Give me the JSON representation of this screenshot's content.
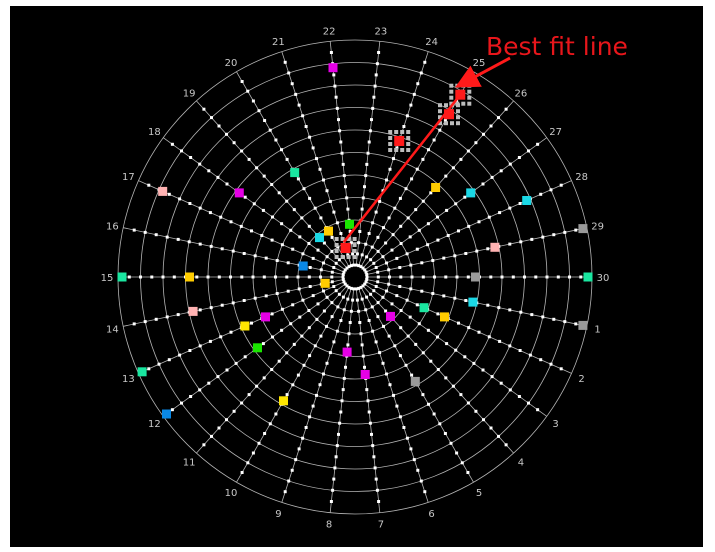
{
  "annotation": {
    "label": "Best fit line",
    "color": "#e8161b"
  },
  "colors": {
    "background": "#000000",
    "grid": "#b4b4b4",
    "label": "#c8c8c8",
    "dot": "#ffffff",
    "highlight": "#ff1a1a",
    "cluster": "#bdbdbd"
  },
  "spoke_labels": [
    "1",
    "2",
    "3",
    "4",
    "5",
    "6",
    "7",
    "8",
    "9",
    "10",
    "11",
    "12",
    "13",
    "14",
    "15",
    "16",
    "17",
    "18",
    "19",
    "20",
    "21",
    "22",
    "23",
    "24",
    "25",
    "26",
    "27",
    "28",
    "29",
    "30"
  ],
  "ring_count": 10,
  "markers": [
    {
      "spoke": 22,
      "ring": 9,
      "color": "#e600e6"
    },
    {
      "spoke": 25,
      "ring": 9,
      "color": "#9a9a9a"
    },
    {
      "spoke": 18,
      "ring": 6,
      "color": "#e600e6"
    },
    {
      "spoke": 20,
      "ring": 5,
      "color": "#1ae6a0"
    },
    {
      "spoke": 17,
      "ring": 9,
      "color": "#ffb2b2"
    },
    {
      "spoke": 28,
      "ring": 8,
      "color": "#1ad8e6"
    },
    {
      "spoke": 27,
      "ring": 6,
      "color": "#1ad8e6"
    },
    {
      "spoke": 26,
      "ring": 5,
      "color": "#ffcc00"
    },
    {
      "spoke": 29,
      "ring": 10,
      "color": "#9a9a9a"
    },
    {
      "spoke": 29,
      "ring": 6,
      "color": "#ffb2b2"
    },
    {
      "spoke": 30,
      "ring": 5,
      "color": "#9a9a9a"
    },
    {
      "spoke": 30,
      "ring": 10,
      "color": "#1ae6a0"
    },
    {
      "spoke": 1,
      "ring": 10,
      "color": "#9a9a9a"
    },
    {
      "spoke": 1,
      "ring": 5,
      "color": "#1ad8e6"
    },
    {
      "spoke": 2,
      "ring": 3,
      "color": "#1ae6a0"
    },
    {
      "spoke": 2,
      "ring": 4,
      "color": "#ffcc00"
    },
    {
      "spoke": 4,
      "ring": 2,
      "color": "#e600e6"
    },
    {
      "spoke": 5,
      "ring": 5,
      "color": "#9a9a9a"
    },
    {
      "spoke": 7,
      "ring": 4,
      "color": "#e600e6"
    },
    {
      "spoke": 8,
      "ring": 3,
      "color": "#e600e6"
    },
    {
      "spoke": 10,
      "ring": 6,
      "color": "#ffe600"
    },
    {
      "spoke": 12,
      "ring": 5,
      "color": "#1ae600"
    },
    {
      "spoke": 13,
      "ring": 4,
      "color": "#e600e6"
    },
    {
      "spoke": 13,
      "ring": 5,
      "color": "#ffe600"
    },
    {
      "spoke": 14,
      "ring": 7,
      "color": "#ffb2b2"
    },
    {
      "spoke": 15,
      "ring": 7,
      "color": "#ffcc00"
    },
    {
      "spoke": 15,
      "ring": 10,
      "color": "#1ae6a0"
    },
    {
      "spoke": 13,
      "ring": 10,
      "color": "#1ae6a0"
    },
    {
      "spoke": 12,
      "ring": 10,
      "color": "#1ae6a0"
    },
    {
      "spoke": 12,
      "ring": 10,
      "color": "#0a88e6"
    },
    {
      "spoke": 16,
      "ring": 2,
      "color": "#0a88e6"
    },
    {
      "spoke": 19,
      "ring": 2,
      "color": "#1ad8e6"
    },
    {
      "spoke": 20,
      "ring": 2,
      "color": "#ffcc00"
    },
    {
      "spoke": 22,
      "ring": 2,
      "color": "#1ae600"
    },
    {
      "spoke": 14,
      "ring": 1,
      "color": "#ffcc00"
    }
  ],
  "clusters": [
    {
      "spoke": 25,
      "ring": 9
    },
    {
      "spoke": 25,
      "ring": 8
    },
    {
      "spoke": 24,
      "ring": 6
    },
    {
      "spoke": 21,
      "ring": 1
    }
  ]
}
